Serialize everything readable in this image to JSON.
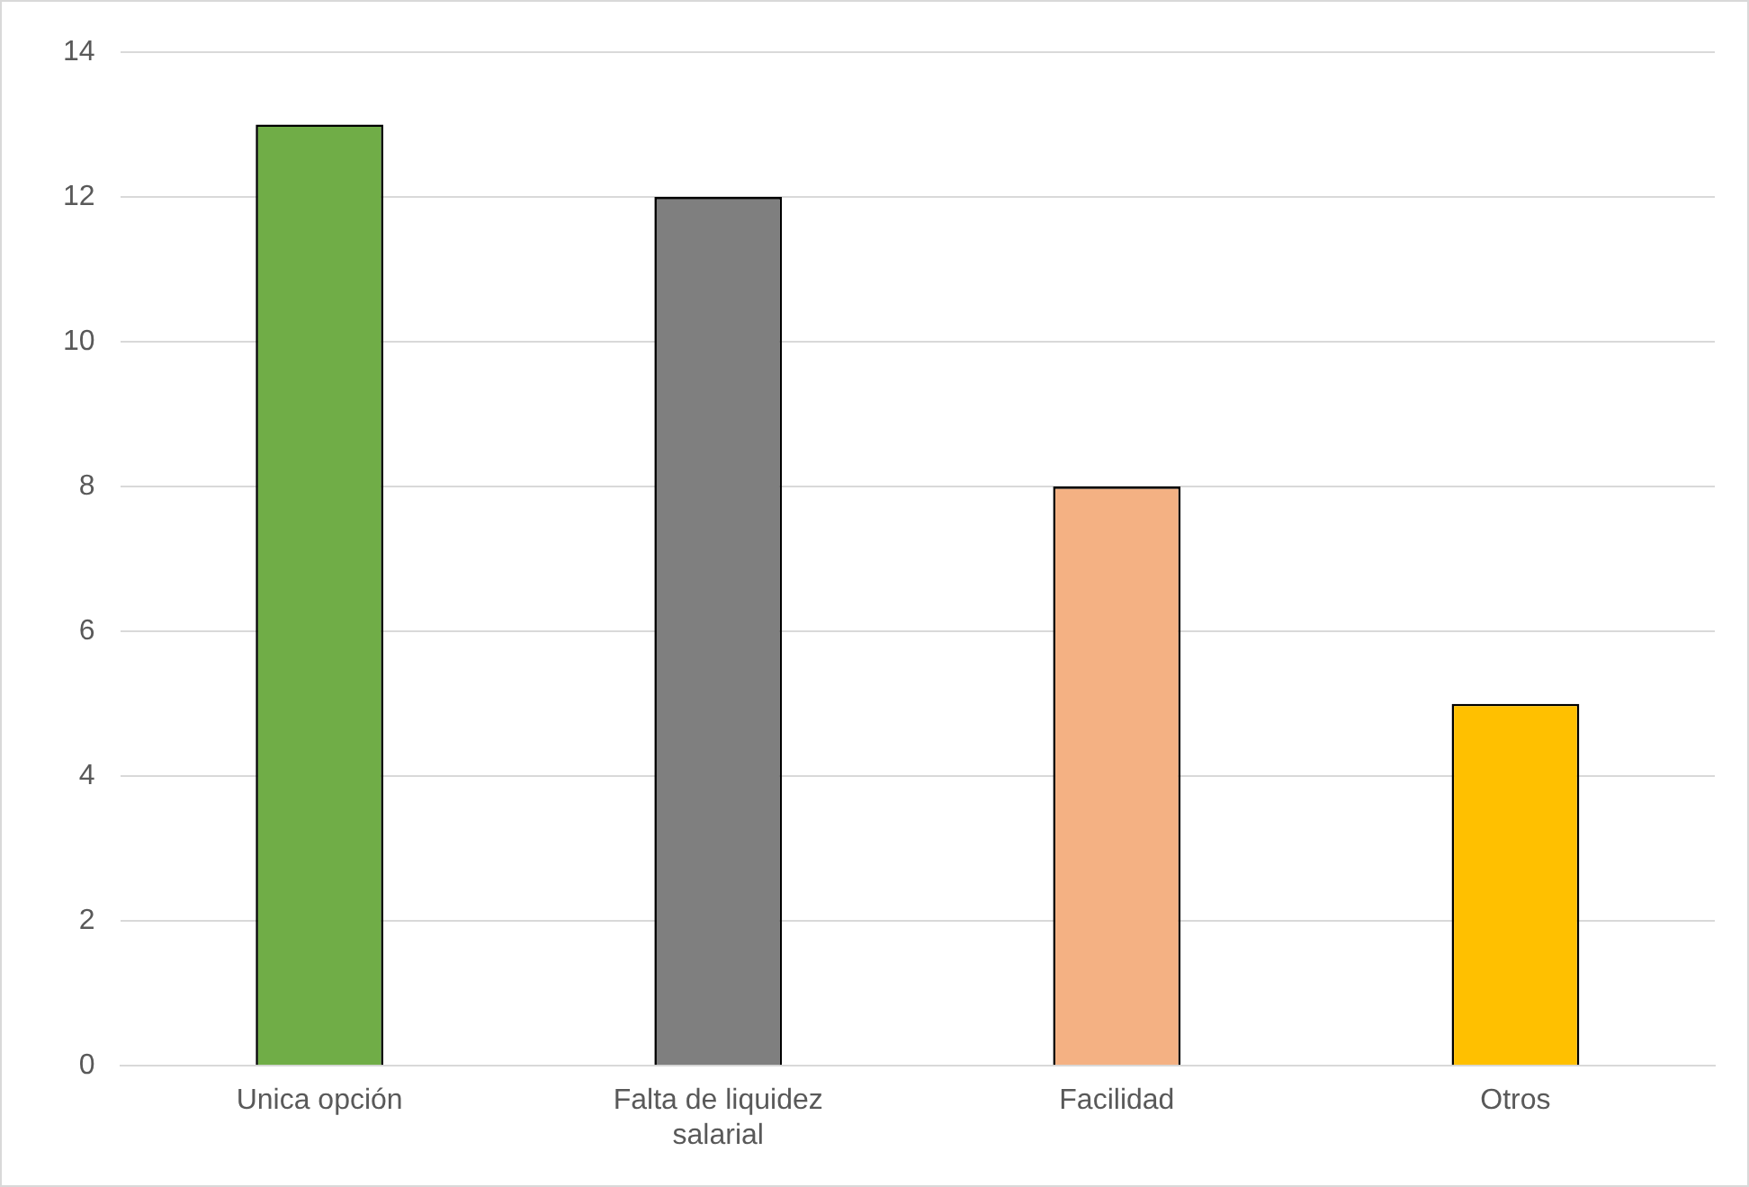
{
  "chart_data": {
    "type": "bar",
    "categories": [
      "Unica opción",
      "Falta de liquidez salarial",
      "Facilidad",
      "Otros"
    ],
    "values": [
      13,
      12,
      8,
      5
    ],
    "colors": [
      "#70ad47",
      "#7f7f7f",
      "#f4b183",
      "#ffc000"
    ],
    "ylim": [
      0,
      14
    ],
    "yticks": [
      0,
      2,
      4,
      6,
      8,
      10,
      12,
      14
    ],
    "grid": "y",
    "legend": false
  }
}
